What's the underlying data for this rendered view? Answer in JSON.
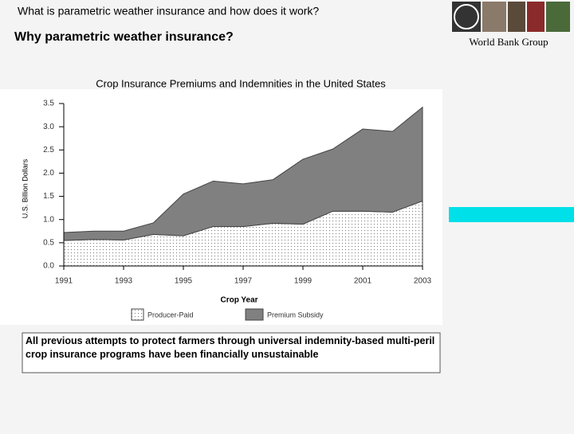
{
  "header": {
    "title": "What is parametric weather insurance and how does it work?",
    "subtitle": "Why parametric weather insurance?",
    "logo_caption": "World Bank Group"
  },
  "note": "All previous attempts to protect farmers through universal indemnity-based multi-peril crop insurance programs have been financially unsustainable",
  "chart_data": {
    "type": "stacked_area",
    "title": "Crop Insurance Premiums and Indemnities in the United States",
    "x_label": "Crop Year",
    "y_label": "U.S. Billion Dollars",
    "x": [
      1991,
      1992,
      1993,
      1994,
      1995,
      1996,
      1997,
      1998,
      1999,
      2000,
      2001,
      2002,
      2003
    ],
    "series": [
      {
        "name": "Producer-Paid",
        "color": "#ffffff",
        "values": [
          0.55,
          0.57,
          0.56,
          0.68,
          0.65,
          0.85,
          0.85,
          0.92,
          0.9,
          1.18,
          1.18,
          1.16,
          1.4
        ]
      },
      {
        "name": "Premium Subsidy",
        "color": "#808080",
        "values": [
          0.17,
          0.18,
          0.19,
          0.25,
          0.9,
          0.98,
          0.92,
          0.94,
          1.4,
          1.34,
          1.77,
          1.74,
          2.02
        ]
      }
    ],
    "xlim": [
      1991,
      2003
    ],
    "xticks": [
      1991,
      1993,
      1995,
      1997,
      1999,
      2001,
      2003
    ],
    "ylim": [
      0,
      3.5
    ],
    "yticks": [
      {
        "value": 0,
        "label": "0.0"
      },
      0.5,
      {
        "value": 1,
        "label": "1.0"
      },
      1.5,
      {
        "value": 2,
        "label": "2.0"
      },
      2.5,
      {
        "value": 3,
        "label": "3.0"
      },
      3.5
    ]
  }
}
